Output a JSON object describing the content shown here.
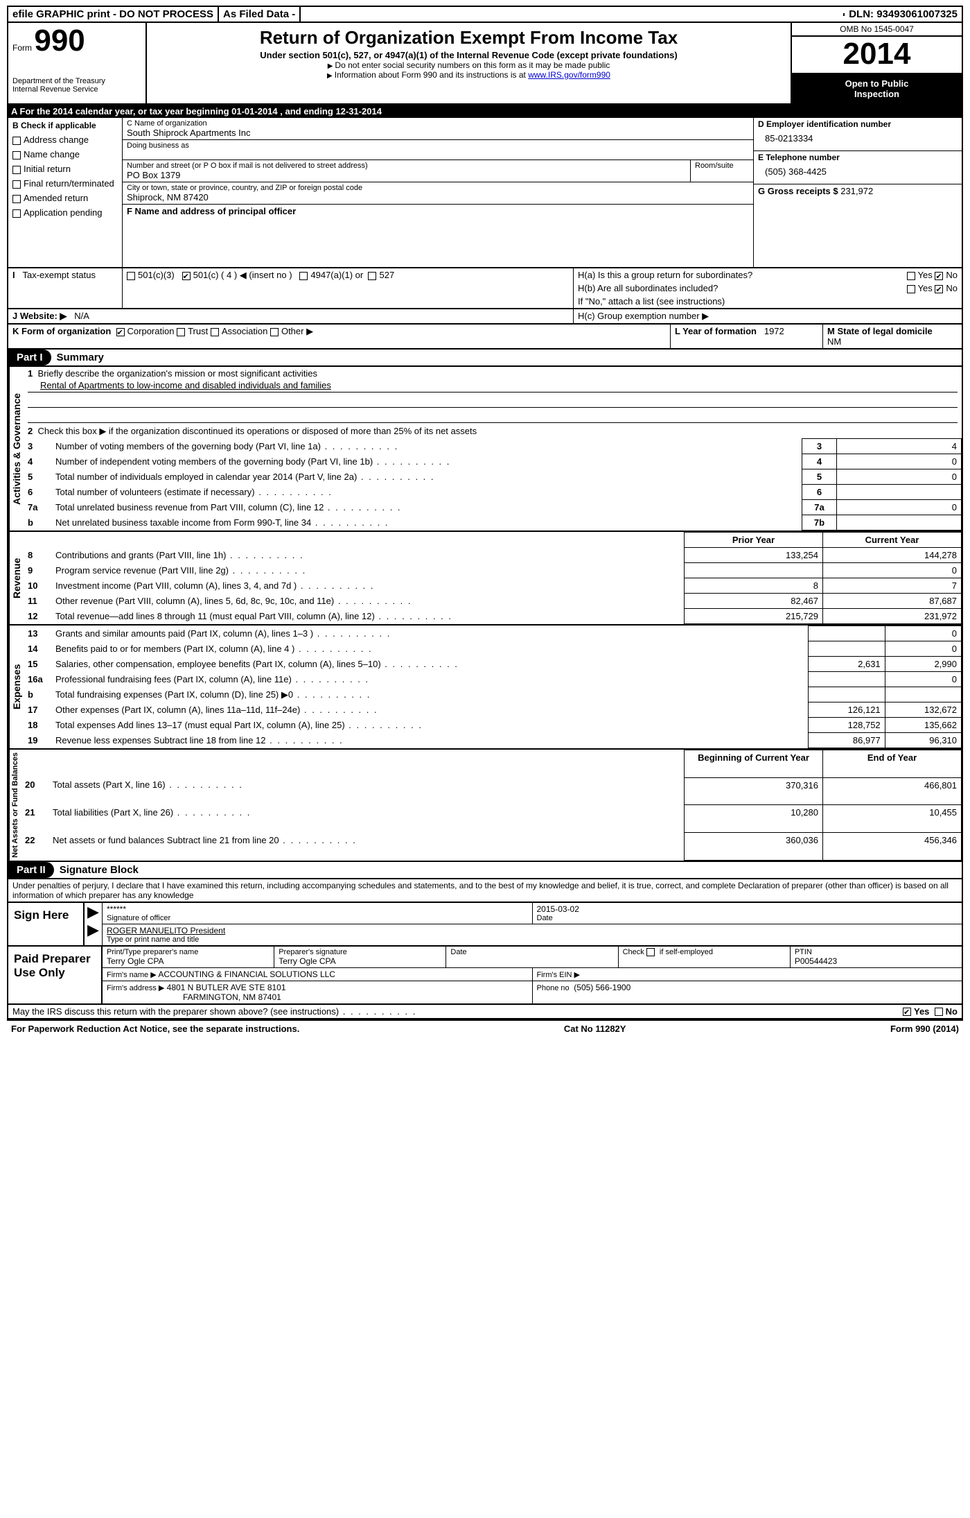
{
  "topbar": {
    "efile": "efile GRAPHIC print - DO NOT PROCESS",
    "asfiled": "As Filed Data -",
    "dln_label": "DLN:",
    "dln": "93493061007325"
  },
  "header": {
    "form_label": "Form",
    "form_num": "990",
    "agency1": "Department of the Treasury",
    "agency2": "Internal Revenue Service",
    "title": "Return of Organization Exempt From Income Tax",
    "subtitle": "Under section 501(c), 527, or 4947(a)(1) of the Internal Revenue Code (except private foundations)",
    "note1": "Do not enter social security numbers on this form as it may be made public",
    "note2_pre": "Information about Form 990 and its instructions is at ",
    "note2_link": "www.IRS.gov/form990",
    "omb": "OMB No 1545-0047",
    "year": "2014",
    "open1": "Open to Public",
    "open2": "Inspection"
  },
  "A": {
    "text_pre": "A  For the 2014 calendar year, or tax year beginning ",
    "begin": "01-01-2014",
    "mid": " , and ending ",
    "end": "12-31-2014"
  },
  "B": {
    "label": "B  Check if applicable",
    "items": [
      "Address change",
      "Name change",
      "Initial return",
      "Final return/terminated",
      "Amended return",
      "Application pending"
    ]
  },
  "C": {
    "name_label": "C Name of organization",
    "name": "South Shiprock Apartments Inc",
    "dba_label": "Doing business as",
    "dba": "",
    "addr_label": "Number and street (or P O box if mail is not delivered to street address)",
    "room_label": "Room/suite",
    "addr": "PO Box 1379",
    "city_label": "City or town, state or province, country, and ZIP or foreign postal code",
    "city": "Shiprock, NM  87420",
    "F_label": "F   Name and address of principal officer"
  },
  "D": {
    "label": "D Employer identification number",
    "val": "85-0213334"
  },
  "E": {
    "label": "E Telephone number",
    "val": "(505) 368-4425"
  },
  "G": {
    "label": "G Gross receipts $",
    "val": "231,972"
  },
  "H": {
    "a": "H(a)  Is this a group return for subordinates?",
    "b": "H(b)  Are all subordinates included?",
    "bno": "If \"No,\" attach a list  (see instructions)",
    "c": "H(c)   Group exemption number ▶",
    "yes": "Yes",
    "no": "No"
  },
  "I": {
    "label": "I   Tax-exempt status",
    "c3": "501(c)(3)",
    "c": "501(c) ( 4 ) ◀ (insert no )",
    "a1": "4947(a)(1) or",
    "527": "527"
  },
  "J": {
    "label": "J   Website: ▶",
    "val": "N/A"
  },
  "K": {
    "label": "K Form of organization",
    "corp": "Corporation",
    "trust": "Trust",
    "assoc": "Association",
    "other": "Other ▶"
  },
  "L": {
    "label": "L Year of formation",
    "val": "1972"
  },
  "M": {
    "label": "M State of legal domicile",
    "val": "NM"
  },
  "partI": {
    "tag": "Part I",
    "title": "Summary"
  },
  "summary": {
    "line1_label": "Briefly describe the organization's mission or most significant activities",
    "line1_val": "Rental of Apartments to low-income and disabled individuals and families",
    "line2": "Check this box ▶    if the organization discontinued its operations or disposed of more than 25% of its net assets",
    "rows_gov": [
      {
        "n": "3",
        "t": "Number of voting members of the governing body (Part VI, line 1a)",
        "box": "3",
        "v": "4"
      },
      {
        "n": "4",
        "t": "Number of independent voting members of the governing body (Part VI, line 1b)",
        "box": "4",
        "v": "0"
      },
      {
        "n": "5",
        "t": "Total number of individuals employed in calendar year 2014 (Part V, line 2a)",
        "box": "5",
        "v": "0"
      },
      {
        "n": "6",
        "t": "Total number of volunteers (estimate if necessary)",
        "box": "6",
        "v": ""
      },
      {
        "n": "7a",
        "t": "Total unrelated business revenue from Part VIII, column (C), line 12",
        "box": "7a",
        "v": "0"
      },
      {
        "n": "b",
        "t": "Net unrelated business taxable income from Form 990-T, line 34",
        "box": "7b",
        "v": ""
      }
    ],
    "col_prior": "Prior Year",
    "col_curr": "Current Year",
    "rev": [
      {
        "n": "8",
        "t": "Contributions and grants (Part VIII, line 1h)",
        "p": "133,254",
        "c": "144,278"
      },
      {
        "n": "9",
        "t": "Program service revenue (Part VIII, line 2g)",
        "p": "",
        "c": "0"
      },
      {
        "n": "10",
        "t": "Investment income (Part VIII, column (A), lines 3, 4, and 7d )",
        "p": "8",
        "c": "7"
      },
      {
        "n": "11",
        "t": "Other revenue (Part VIII, column (A), lines 5, 6d, 8c, 9c, 10c, and 11e)",
        "p": "82,467",
        "c": "87,687"
      },
      {
        "n": "12",
        "t": "Total revenue—add lines 8 through 11 (must equal Part VIII, column (A), line 12)",
        "p": "215,729",
        "c": "231,972"
      }
    ],
    "exp": [
      {
        "n": "13",
        "t": "Grants and similar amounts paid (Part IX, column (A), lines 1–3 )",
        "p": "",
        "c": "0"
      },
      {
        "n": "14",
        "t": "Benefits paid to or for members (Part IX, column (A), line 4 )",
        "p": "",
        "c": "0"
      },
      {
        "n": "15",
        "t": "Salaries, other compensation, employee benefits (Part IX, column (A), lines 5–10)",
        "p": "2,631",
        "c": "2,990"
      },
      {
        "n": "16a",
        "t": "Professional fundraising fees (Part IX, column (A), line 11e)",
        "p": "",
        "c": "0"
      },
      {
        "n": "b",
        "t": "Total fundraising expenses (Part IX, column (D), line 25) ▶0",
        "p": "_blank",
        "c": "_blank"
      },
      {
        "n": "17",
        "t": "Other expenses (Part IX, column (A), lines 11a–11d, 11f–24e)",
        "p": "126,121",
        "c": "132,672"
      },
      {
        "n": "18",
        "t": "Total expenses  Add lines 13–17 (must equal Part IX, column (A), line 25)",
        "p": "128,752",
        "c": "135,662"
      },
      {
        "n": "19",
        "t": "Revenue less expenses  Subtract line 18 from line 12",
        "p": "86,977",
        "c": "96,310"
      }
    ],
    "col_beg": "Beginning of Current Year",
    "col_end": "End of Year",
    "net": [
      {
        "n": "20",
        "t": "Total assets (Part X, line 16)",
        "p": "370,316",
        "c": "466,801"
      },
      {
        "n": "21",
        "t": "Total liabilities (Part X, line 26)",
        "p": "10,280",
        "c": "10,455"
      },
      {
        "n": "22",
        "t": "Net assets or fund balances  Subtract line 21 from line 20",
        "p": "360,036",
        "c": "456,346"
      }
    ],
    "side_gov": "Activities & Governance",
    "side_rev": "Revenue",
    "side_exp": "Expenses",
    "side_net": "Net Assets or Fund Balances"
  },
  "partII": {
    "tag": "Part II",
    "title": "Signature Block"
  },
  "perjury": "Under penalties of perjury, I declare that I have examined this return, including accompanying schedules and statements, and to the best of my knowledge and belief, it is true, correct, and complete  Declaration of preparer (other than officer) is based on all information of which preparer has any knowledge",
  "sign": {
    "here": "Sign Here",
    "sig_mask": "******",
    "sig_label": "Signature of officer",
    "date": "2015-03-02",
    "date_label": "Date",
    "name": "ROGER MANUELITO President",
    "name_label": "Type or print name and title"
  },
  "paid": {
    "label": "Paid Preparer Use Only",
    "pt_label": "Print/Type preparer's name",
    "pt": "Terry Ogle CPA",
    "ps_label": "Preparer's signature",
    "ps": "Terry Ogle CPA",
    "d_label": "Date",
    "se_label": "Check       if self-employed",
    "ptin_label": "PTIN",
    "ptin": "P00544423",
    "firm_label": "Firm's name    ▶",
    "firm": "ACCOUNTING & FINANCIAL SOLUTIONS LLC",
    "ein_label": "Firm's EIN ▶",
    "addr_label": "Firm's address ▶",
    "addr1": "4801 N BUTLER AVE STE 8101",
    "addr2": "FARMINGTON, NM  87401",
    "phone_label": "Phone no",
    "phone": "(505) 566-1900"
  },
  "discuss": {
    "q": "May the IRS discuss this return with the preparer shown above? (see instructions)",
    "yes": "Yes",
    "no": "No"
  },
  "footer": {
    "left": "For Paperwork Reduction Act Notice, see the separate instructions.",
    "mid": "Cat No 11282Y",
    "right": "Form 990 (2014)"
  }
}
